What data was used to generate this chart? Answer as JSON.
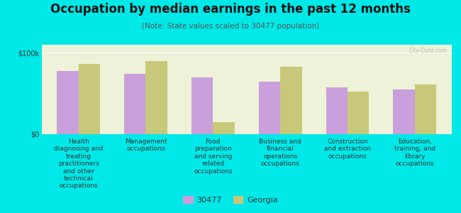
{
  "title": "Occupation by median earnings in the past 12 months",
  "subtitle": "(Note: State values scaled to 30477 population)",
  "background_color": "#00e8e8",
  "plot_bg_color": "#eef2d8",
  "categories": [
    "Health\ndiagnosing and\ntreating\npractitioners\nand other\ntechnical\noccupations",
    "Management\noccupations",
    "Food\npreparation\nand serving\nrelated\noccupations",
    "Business and\nfinancial\noperations\noccupations",
    "Construction\nand extraction\noccupations",
    "Education,\ntraining, and\nlibrary\noccupations"
  ],
  "values_30477": [
    78000,
    74000,
    70000,
    65000,
    58000,
    55000
  ],
  "values_georgia": [
    86000,
    90000,
    15000,
    83000,
    52000,
    61000
  ],
  "color_30477": "#c9a0dc",
  "color_georgia": "#c8c87a",
  "ymax": 110000,
  "legend_label_1": "30477",
  "legend_label_2": "Georgia",
  "watermark": "City-Data.com",
  "title_fontsize": 12,
  "subtitle_fontsize": 7.5,
  "tick_fontsize": 7,
  "xlabel_fontsize": 6.5
}
